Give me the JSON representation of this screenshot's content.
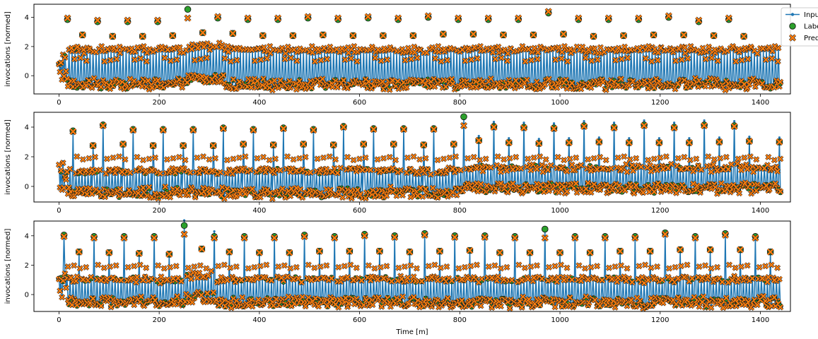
{
  "chart_data": [
    {
      "type": "line",
      "panel": 1,
      "ylabel": "invocations [normed]",
      "xlabel": "",
      "xlim": [
        -50,
        1460
      ],
      "ylim": [
        -1.25,
        4.9
      ],
      "x_ticks": [
        0,
        200,
        400,
        600,
        800,
        1000,
        1200,
        1400
      ],
      "y_ticks": [
        0,
        2,
        4
      ],
      "legend": {
        "position": "top-right",
        "entries": [
          {
            "name": "Inputs",
            "marker": "line-dot",
            "color": "#1f77b4"
          },
          {
            "name": "Labels",
            "marker": "circle",
            "color": "#2ca02c"
          },
          {
            "name": "Predictions",
            "marker": "x",
            "color": "#ff7f0e"
          }
        ]
      },
      "pattern": {
        "x_start": 0,
        "x_end": 1440,
        "period": 60,
        "peak_offset": 17,
        "baseline_min": -0.9,
        "baseline_max": -0.25,
        "shift_start": 255,
        "shift_end": 330,
        "shift": 0.35
      },
      "peaks": [
        [
          17,
          3.85
        ],
        [
          77,
          3.7
        ],
        [
          137,
          3.7
        ],
        [
          197,
          3.7
        ],
        [
          257,
          4.55
        ],
        [
          317,
          3.95
        ],
        [
          377,
          3.85
        ],
        [
          437,
          3.85
        ],
        [
          497,
          3.95
        ],
        [
          557,
          3.85
        ],
        [
          617,
          3.95
        ],
        [
          677,
          3.85
        ],
        [
          737,
          4.0
        ],
        [
          797,
          3.85
        ],
        [
          857,
          3.85
        ],
        [
          917,
          3.85
        ],
        [
          977,
          4.3
        ],
        [
          1037,
          3.85
        ],
        [
          1097,
          3.85
        ],
        [
          1157,
          3.85
        ],
        [
          1217,
          4.0
        ],
        [
          1277,
          3.7
        ],
        [
          1337,
          3.85
        ]
      ],
      "spikes": [
        [
          35,
          1.9
        ],
        [
          47,
          2.8
        ],
        [
          107,
          2.7
        ],
        [
          167,
          2.7
        ],
        [
          227,
          2.75
        ],
        [
          287,
          2.95
        ],
        [
          347,
          2.9
        ],
        [
          407,
          2.75
        ],
        [
          467,
          2.75
        ],
        [
          527,
          2.8
        ],
        [
          587,
          2.75
        ],
        [
          647,
          2.75
        ],
        [
          707,
          2.75
        ],
        [
          767,
          2.85
        ],
        [
          827,
          2.85
        ],
        [
          887,
          2.8
        ],
        [
          947,
          2.8
        ],
        [
          1007,
          2.85
        ],
        [
          1067,
          2.7
        ],
        [
          1127,
          2.75
        ],
        [
          1187,
          2.8
        ],
        [
          1247,
          2.8
        ],
        [
          1307,
          2.75
        ],
        [
          1367,
          2.7
        ]
      ]
    },
    {
      "type": "line",
      "panel": 2,
      "ylabel": "invocations [normed]",
      "xlabel": "",
      "xlim": [
        -50,
        1460
      ],
      "ylim": [
        -1.05,
        5.0
      ],
      "x_ticks": [
        0,
        200,
        400,
        600,
        800,
        1000,
        1200,
        1400
      ],
      "y_ticks": [
        0,
        2,
        4
      ],
      "pattern": {
        "x_start": 0,
        "x_end": 1440,
        "period": 60,
        "peak_offset": 28,
        "baseline_min": -0.75,
        "baseline_max": -0.1,
        "shift_start": 810,
        "shift_end": 1440,
        "shift": 0.3
      },
      "peaks": [
        [
          28,
          3.75
        ],
        [
          88,
          4.15
        ],
        [
          148,
          3.85
        ],
        [
          208,
          3.85
        ],
        [
          268,
          3.85
        ],
        [
          328,
          3.95
        ],
        [
          388,
          3.85
        ],
        [
          448,
          3.95
        ],
        [
          508,
          3.85
        ],
        [
          568,
          4.05
        ],
        [
          628,
          3.9
        ],
        [
          688,
          3.9
        ],
        [
          748,
          3.9
        ],
        [
          808,
          4.7
        ],
        [
          868,
          4.05
        ],
        [
          928,
          4.0
        ],
        [
          988,
          3.95
        ],
        [
          1048,
          4.1
        ],
        [
          1108,
          4.0
        ],
        [
          1168,
          4.15
        ],
        [
          1228,
          4.0
        ],
        [
          1288,
          4.15
        ],
        [
          1348,
          4.1
        ]
      ],
      "spikes": [
        [
          68,
          2.75
        ],
        [
          128,
          2.85
        ],
        [
          188,
          2.75
        ],
        [
          248,
          2.75
        ],
        [
          308,
          2.75
        ],
        [
          368,
          2.85
        ],
        [
          428,
          2.8
        ],
        [
          488,
          2.85
        ],
        [
          548,
          2.8
        ],
        [
          608,
          2.85
        ],
        [
          668,
          2.85
        ],
        [
          728,
          2.8
        ],
        [
          788,
          2.85
        ],
        [
          838,
          3.1
        ],
        [
          898,
          2.95
        ],
        [
          958,
          2.9
        ],
        [
          1018,
          2.95
        ],
        [
          1078,
          3.0
        ],
        [
          1138,
          2.95
        ],
        [
          1198,
          2.95
        ],
        [
          1258,
          2.95
        ],
        [
          1318,
          3.0
        ],
        [
          1378,
          3.05
        ],
        [
          1438,
          3.0
        ]
      ]
    },
    {
      "type": "line",
      "panel": 3,
      "ylabel": "invocations [normed]",
      "xlabel": "Time [m]",
      "xlim": [
        -50,
        1460
      ],
      "ylim": [
        -1.15,
        5.0
      ],
      "x_ticks": [
        0,
        200,
        400,
        600,
        800,
        1000,
        1200,
        1400
      ],
      "y_ticks": [
        0,
        2,
        4
      ],
      "pattern": {
        "x_start": 0,
        "x_end": 1440,
        "period": 60,
        "peak_offset": 10,
        "baseline_min": -0.85,
        "baseline_max": -0.2,
        "shift_start": 250,
        "shift_end": 310,
        "shift": 0.35
      },
      "peaks": [
        [
          10,
          4.05
        ],
        [
          70,
          3.95
        ],
        [
          130,
          3.95
        ],
        [
          190,
          3.95
        ],
        [
          250,
          4.7
        ],
        [
          310,
          3.95
        ],
        [
          370,
          3.95
        ],
        [
          430,
          3.95
        ],
        [
          490,
          4.05
        ],
        [
          550,
          3.95
        ],
        [
          610,
          4.1
        ],
        [
          670,
          4.0
        ],
        [
          730,
          4.15
        ],
        [
          790,
          4.0
        ],
        [
          850,
          4.0
        ],
        [
          910,
          3.95
        ],
        [
          970,
          4.45
        ],
        [
          1030,
          3.95
        ],
        [
          1090,
          3.95
        ],
        [
          1150,
          3.95
        ],
        [
          1210,
          4.2
        ],
        [
          1270,
          3.95
        ],
        [
          1330,
          4.15
        ],
        [
          1390,
          3.95
        ]
      ],
      "spikes": [
        [
          40,
          2.9
        ],
        [
          100,
          2.85
        ],
        [
          160,
          2.8
        ],
        [
          220,
          2.75
        ],
        [
          285,
          3.1
        ],
        [
          340,
          2.9
        ],
        [
          400,
          2.85
        ],
        [
          460,
          2.85
        ],
        [
          520,
          2.95
        ],
        [
          580,
          2.95
        ],
        [
          640,
          2.95
        ],
        [
          700,
          2.9
        ],
        [
          760,
          2.95
        ],
        [
          820,
          3.0
        ],
        [
          880,
          2.85
        ],
        [
          940,
          2.85
        ],
        [
          1000,
          2.85
        ],
        [
          1060,
          2.85
        ],
        [
          1120,
          2.95
        ],
        [
          1180,
          2.95
        ],
        [
          1240,
          3.05
        ],
        [
          1300,
          3.05
        ],
        [
          1360,
          3.05
        ],
        [
          1420,
          2.9
        ]
      ]
    }
  ]
}
